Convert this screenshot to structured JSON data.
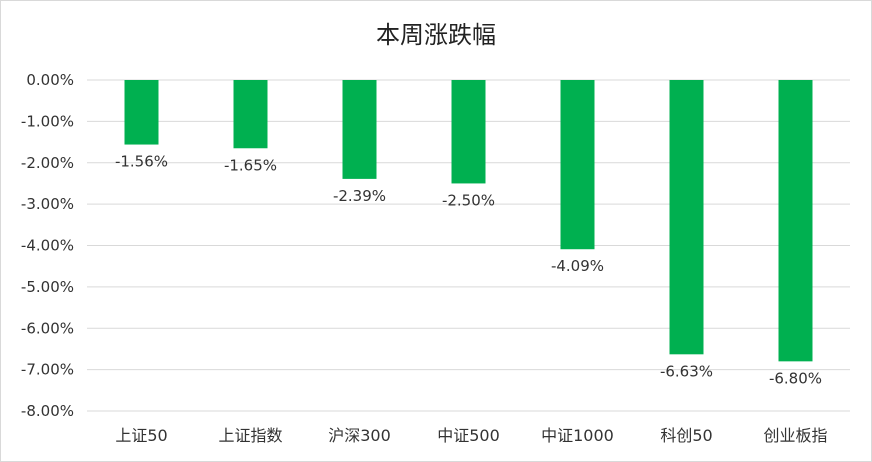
{
  "chart_data": {
    "type": "bar",
    "title": "本周涨跌幅",
    "categories": [
      "上证50",
      "上证指数",
      "沪深300",
      "中证500",
      "中证1000",
      "科创50",
      "创业板指"
    ],
    "values": [
      -1.56,
      -1.65,
      -2.39,
      -2.5,
      -4.09,
      -6.63,
      -6.8
    ],
    "data_labels": [
      "-1.56%",
      "-1.65%",
      "-2.39%",
      "-2.50%",
      "-4.09%",
      "-6.63%",
      "-6.80%"
    ],
    "y_ticks": [
      "0.00%",
      "-1.00%",
      "-2.00%",
      "-3.00%",
      "-4.00%",
      "-5.00%",
      "-6.00%",
      "-7.00%",
      "-8.00%"
    ],
    "ylim": [
      -8,
      0
    ],
    "bar_color": "#00b050",
    "grid": true,
    "legend": "none"
  }
}
